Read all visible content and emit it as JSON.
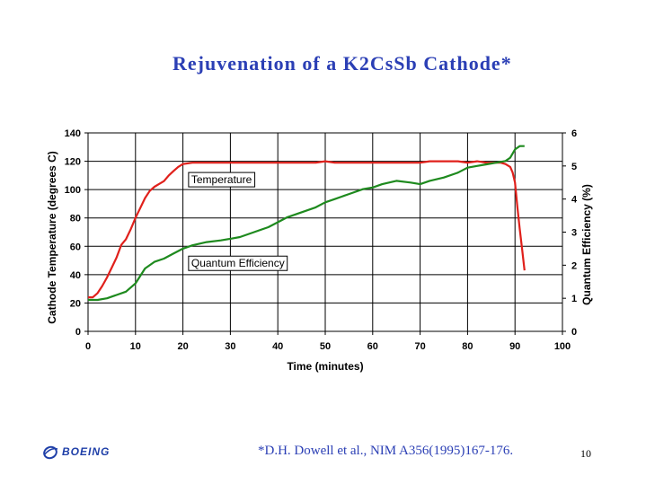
{
  "slide": {
    "title": "Rejuvenation of a K2CsSb Cathode*",
    "citation": "*D.H. Dowell et al., NIM A356(1995)167-176.",
    "page_number": "10",
    "logo_text": "BOEING"
  },
  "colors": {
    "title": "#2b3fb5",
    "temperature": "#e0201b",
    "quantum_efficiency": "#1e8a1e",
    "grid": "#000000"
  },
  "chart_data": {
    "type": "line",
    "xlabel": "Time (minutes)",
    "ylabel": "Cathode Temperature (degrees C)",
    "y2label": "Quantum Efficiency (%)",
    "xlim": [
      0,
      100
    ],
    "ylim": [
      0,
      140
    ],
    "y2lim": [
      0,
      6
    ],
    "xticks": [
      0,
      10,
      20,
      30,
      40,
      50,
      60,
      70,
      80,
      90,
      100
    ],
    "yticks": [
      0,
      20,
      40,
      60,
      80,
      100,
      120,
      140
    ],
    "y2ticks": [
      0,
      1,
      2,
      3,
      4,
      5,
      6
    ],
    "grid": true,
    "annotations": [
      {
        "text": "Temperature",
        "x": 21,
        "y": 107
      },
      {
        "text": "Quantum Efficiency",
        "x": 21,
        "y": 48
      }
    ],
    "series": [
      {
        "name": "Temperature",
        "axis": "left",
        "color": "#e0201b",
        "x": [
          0,
          1,
          2,
          3,
          4,
          5,
          6,
          7,
          8,
          9,
          10,
          11,
          12,
          13,
          14,
          15,
          16,
          17,
          18,
          19,
          20,
          22,
          25,
          30,
          35,
          40,
          45,
          48,
          50,
          52,
          55,
          60,
          65,
          68,
          70,
          72,
          75,
          78,
          80,
          82,
          84,
          86,
          87,
          88,
          89,
          89.5,
          90,
          90.5,
          91,
          91.5,
          92
        ],
        "y": [
          24,
          24,
          27,
          32,
          38,
          45,
          52,
          61,
          65,
          72,
          80,
          87,
          94,
          99,
          102,
          104,
          106,
          110,
          113,
          116,
          118,
          119,
          119,
          119,
          119,
          119,
          119,
          119,
          120,
          119,
          119,
          119,
          119,
          119,
          119,
          120,
          120,
          120,
          119,
          120,
          119,
          119,
          119,
          118,
          116,
          112,
          105,
          88,
          72,
          58,
          43
        ]
      },
      {
        "name": "Quantum Efficiency",
        "axis": "right",
        "color": "#1e8a1e",
        "x": [
          0,
          2,
          4,
          6,
          8,
          10,
          12,
          14,
          16,
          18,
          20,
          22,
          25,
          28,
          30,
          32,
          35,
          38,
          40,
          42,
          45,
          48,
          50,
          52,
          55,
          58,
          60,
          62,
          65,
          68,
          70,
          72,
          75,
          78,
          80,
          82,
          84,
          86,
          88,
          89,
          90,
          91,
          92
        ],
        "y": [
          0.95,
          0.95,
          1.0,
          1.1,
          1.2,
          1.45,
          1.9,
          2.1,
          2.2,
          2.35,
          2.5,
          2.6,
          2.7,
          2.75,
          2.8,
          2.85,
          3.0,
          3.15,
          3.3,
          3.45,
          3.6,
          3.75,
          3.9,
          4.0,
          4.15,
          4.3,
          4.35,
          4.45,
          4.55,
          4.5,
          4.45,
          4.55,
          4.65,
          4.8,
          4.95,
          5.0,
          5.05,
          5.1,
          5.15,
          5.25,
          5.5,
          5.6,
          5.6
        ]
      }
    ]
  }
}
